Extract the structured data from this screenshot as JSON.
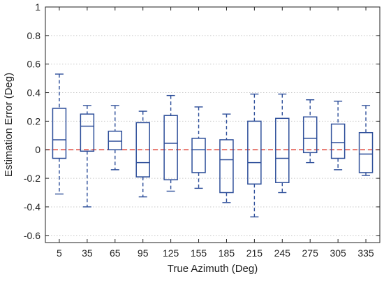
{
  "chart_data": {
    "type": "box",
    "title": "",
    "xlabel": "True Azimuth (Deg)",
    "ylabel": "Estimation Error (Deg)",
    "ylim": [
      -0.65,
      1.0
    ],
    "yticks": [
      -0.6,
      -0.4,
      -0.2,
      0,
      0.2,
      0.4,
      0.6,
      0.8,
      1
    ],
    "ytick_labels": [
      "-0.6",
      "-0.4",
      "-0.2",
      "0",
      "0.2",
      "0.4",
      "0.6",
      "0.8",
      "1"
    ],
    "grid": "horizontal dotted",
    "reference_line": {
      "y": 0,
      "style": "dashed",
      "color": "#e0443a"
    },
    "box_color": "#2e4f9a",
    "categories": [
      "5",
      "35",
      "65",
      "95",
      "125",
      "155",
      "185",
      "215",
      "245",
      "275",
      "305",
      "335"
    ],
    "boxes": [
      {
        "category": "5",
        "whisker_low": -0.31,
        "q1": -0.06,
        "median": 0.07,
        "q3": 0.29,
        "whisker_high": 0.53
      },
      {
        "category": "35",
        "whisker_low": -0.4,
        "q1": -0.01,
        "median": 0.165,
        "q3": 0.25,
        "whisker_high": 0.31
      },
      {
        "category": "65",
        "whisker_low": -0.14,
        "q1": 0.0,
        "median": 0.06,
        "q3": 0.13,
        "whisker_high": 0.31
      },
      {
        "category": "95",
        "whisker_low": -0.33,
        "q1": -0.19,
        "median": -0.09,
        "q3": 0.19,
        "whisker_high": 0.27
      },
      {
        "category": "125",
        "whisker_low": -0.29,
        "q1": -0.21,
        "median": 0.045,
        "q3": 0.24,
        "whisker_high": 0.38
      },
      {
        "category": "155",
        "whisker_low": -0.27,
        "q1": -0.16,
        "median": 0.0,
        "q3": 0.08,
        "whisker_high": 0.3
      },
      {
        "category": "185",
        "whisker_low": -0.37,
        "q1": -0.3,
        "median": -0.07,
        "q3": 0.07,
        "whisker_high": 0.25
      },
      {
        "category": "215",
        "whisker_low": -0.47,
        "q1": -0.24,
        "median": -0.09,
        "q3": 0.2,
        "whisker_high": 0.39
      },
      {
        "category": "245",
        "whisker_low": -0.3,
        "q1": -0.23,
        "median": -0.06,
        "q3": 0.22,
        "whisker_high": 0.39
      },
      {
        "category": "275",
        "whisker_low": -0.09,
        "q1": -0.02,
        "median": 0.08,
        "q3": 0.23,
        "whisker_high": 0.35
      },
      {
        "category": "305",
        "whisker_low": -0.14,
        "q1": -0.06,
        "median": 0.05,
        "q3": 0.18,
        "whisker_high": 0.34
      },
      {
        "category": "335",
        "whisker_low": -0.18,
        "q1": -0.16,
        "median": -0.03,
        "q3": 0.12,
        "whisker_high": 0.31
      }
    ]
  }
}
